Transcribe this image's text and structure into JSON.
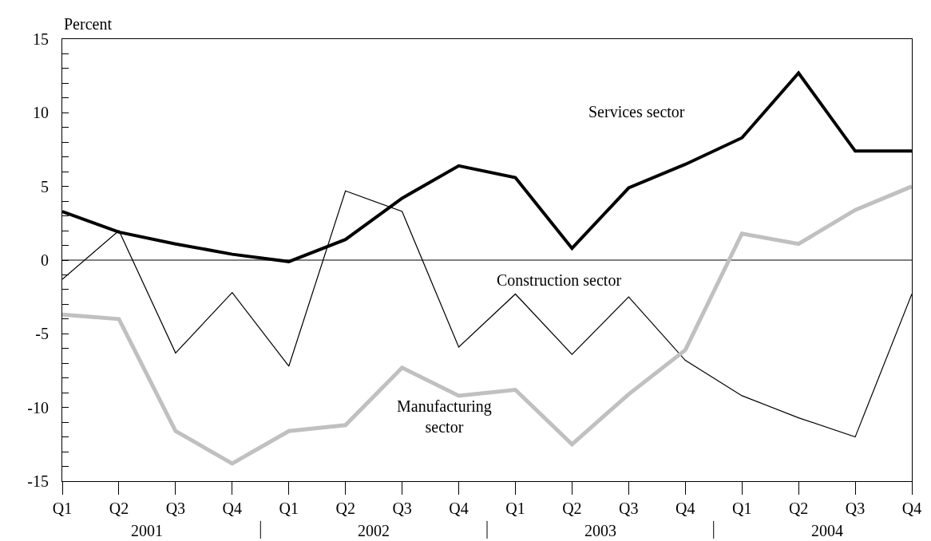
{
  "chart_data": {
    "type": "line",
    "ylabel": "Percent",
    "categories": [
      "Q1",
      "Q2",
      "Q3",
      "Q4",
      "Q1",
      "Q2",
      "Q3",
      "Q4",
      "Q1",
      "Q2",
      "Q3",
      "Q4",
      "Q1",
      "Q2",
      "Q3",
      "Q4"
    ],
    "series": [
      {
        "name": "Services sector",
        "color": "#000000",
        "values": [
          3.3,
          1.9,
          1.1,
          0.4,
          -0.1,
          1.4,
          4.2,
          6.4,
          5.6,
          0.8,
          4.9,
          6.5,
          8.3,
          12.7,
          7.4,
          7.4
        ]
      },
      {
        "name": "Construction sector",
        "color": "#000000",
        "values": [
          -1.3,
          2.0,
          -6.3,
          -2.2,
          -7.2,
          4.7,
          3.3,
          -5.9,
          -2.3,
          -6.4,
          -2.5,
          -6.8,
          -9.2,
          -10.7,
          -12.0,
          -2.3
        ]
      },
      {
        "name": "Manufacturing sector",
        "color": "#c0c0c0",
        "values": [
          -3.7,
          -4.0,
          -11.6,
          -13.8,
          -11.6,
          -11.2,
          -7.3,
          -9.2,
          -8.8,
          -12.5,
          -9.1,
          -6.1,
          1.8,
          1.1,
          3.4,
          5.0
        ]
      }
    ],
    "annotations": [
      "2001",
      "2002",
      "2003",
      "2004"
    ],
    "ylim": [
      -15,
      15
    ],
    "yticks": [
      -15,
      {
        "value": -14,
        "label": null
      },
      {
        "value": -13,
        "label": null
      },
      {
        "value": -12,
        "label": null
      },
      {
        "value": -11,
        "label": null
      },
      -10,
      {
        "value": -9,
        "label": null
      },
      {
        "value": -8,
        "label": null
      },
      {
        "value": -7,
        "label": null
      },
      {
        "value": -6,
        "label": null
      },
      -5,
      {
        "value": -4,
        "label": null
      },
      {
        "value": -3,
        "label": null
      },
      {
        "value": -2,
        "label": null
      },
      {
        "value": -1,
        "label": null
      },
      0,
      {
        "value": 1,
        "label": null
      },
      {
        "value": 2,
        "label": null
      },
      {
        "value": 3,
        "label": null
      },
      {
        "value": 4,
        "label": null
      },
      5,
      {
        "value": 6,
        "label": null
      },
      {
        "value": 7,
        "label": null
      },
      {
        "value": 8,
        "label": null
      },
      {
        "value": 9,
        "label": null
      },
      10,
      {
        "value": 11,
        "label": null
      },
      {
        "value": 12,
        "label": null
      },
      {
        "value": 13,
        "label": null
      },
      {
        "value": 14,
        "label": null
      },
      15
    ],
    "ref_lines": [
      {
        "axis": "y",
        "value": 0,
        "color": "#000000"
      }
    ],
    "grid": false,
    "legend": false,
    "marker": "none",
    "line_style": "solid"
  }
}
